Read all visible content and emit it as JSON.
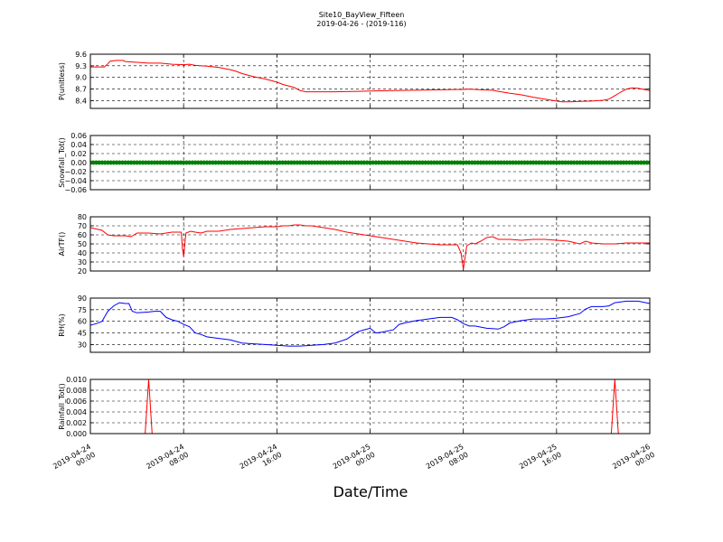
{
  "chart_data": {
    "type": "line",
    "title": "Site10_BayView_Fifteen",
    "subtitle": "2019-04-26 - (2019-116)",
    "xlabel": "Date/Time",
    "x_ticks": [
      {
        "line1": "2019-04-24",
        "line2": "00:00",
        "hours": 0
      },
      {
        "line1": "2019-04-24",
        "line2": "08:00",
        "hours": 8
      },
      {
        "line1": "2019-04-24",
        "line2": "16:00",
        "hours": 16
      },
      {
        "line1": "2019-04-25",
        "line2": "00:00",
        "hours": 24
      },
      {
        "line1": "2019-04-25",
        "line2": "08:00",
        "hours": 32
      },
      {
        "line1": "2019-04-25",
        "line2": "16:00",
        "hours": 40
      },
      {
        "line1": "2019-04-26",
        "line2": "00:00",
        "hours": 48
      }
    ],
    "xlim_hours": [
      0,
      48
    ],
    "grid": true,
    "panels": [
      {
        "id": "pressure",
        "ylabel": "P(unitless)",
        "ylim": [
          8.2,
          9.6
        ],
        "yticks": [
          "9.6",
          "9.3",
          "9.0",
          "8.7",
          "8.4"
        ],
        "ytick_values": [
          9.6,
          9.3,
          9.0,
          8.7,
          8.4
        ],
        "color": "#ff0000",
        "marker": false,
        "points": [
          [
            0,
            9.27
          ],
          [
            1.2,
            9.27
          ],
          [
            1.5,
            9.35
          ],
          [
            1.7,
            9.42
          ],
          [
            2.2,
            9.44
          ],
          [
            2.8,
            9.44
          ],
          [
            3,
            9.41
          ],
          [
            4,
            9.39
          ],
          [
            5,
            9.37
          ],
          [
            6,
            9.37
          ],
          [
            7,
            9.34
          ],
          [
            8,
            9.33
          ],
          [
            8.5,
            9.34
          ],
          [
            9,
            9.31
          ],
          [
            10,
            9.29
          ],
          [
            11,
            9.26
          ],
          [
            12,
            9.2
          ],
          [
            12.5,
            9.16
          ],
          [
            13,
            9.1
          ],
          [
            14,
            9.02
          ],
          [
            15,
            8.96
          ],
          [
            16,
            8.88
          ],
          [
            16.5,
            8.82
          ],
          [
            17,
            8.78
          ],
          [
            17.5,
            8.74
          ],
          [
            18,
            8.66
          ],
          [
            18.5,
            8.63
          ],
          [
            19,
            8.63
          ],
          [
            21,
            8.63
          ],
          [
            23,
            8.64
          ],
          [
            24,
            8.65
          ],
          [
            26,
            8.66
          ],
          [
            28,
            8.67
          ],
          [
            30,
            8.68
          ],
          [
            32,
            8.69
          ],
          [
            32.5,
            8.7
          ],
          [
            33.5,
            8.68
          ],
          [
            34.5,
            8.67
          ],
          [
            35,
            8.64
          ],
          [
            36,
            8.59
          ],
          [
            37,
            8.55
          ],
          [
            38,
            8.49
          ],
          [
            39,
            8.44
          ],
          [
            40,
            8.39
          ],
          [
            40.5,
            8.37
          ],
          [
            41,
            8.37
          ],
          [
            42,
            8.38
          ],
          [
            43,
            8.39
          ],
          [
            44,
            8.41
          ],
          [
            44.5,
            8.44
          ],
          [
            45,
            8.53
          ],
          [
            45.5,
            8.62
          ],
          [
            46,
            8.7
          ],
          [
            46.5,
            8.73
          ],
          [
            47,
            8.72
          ],
          [
            48,
            8.66
          ]
        ]
      },
      {
        "id": "snowfall",
        "ylabel": "Snowfall_Tot()",
        "ylim": [
          -0.06,
          0.06
        ],
        "yticks": [
          "0.06",
          "0.04",
          "0.02",
          "0.00",
          "−0.02",
          "−0.04",
          "−0.06"
        ],
        "ytick_values": [
          0.06,
          0.04,
          0.02,
          0.0,
          -0.02,
          -0.04,
          -0.06
        ],
        "color": "#008000",
        "marker": true,
        "points": [
          [
            0,
            0
          ],
          [
            48,
            0
          ]
        ]
      },
      {
        "id": "airtemp",
        "ylabel": "AirTF()",
        "ylim": [
          20,
          80
        ],
        "yticks": [
          "80",
          "70",
          "60",
          "50",
          "40",
          "30",
          "20"
        ],
        "ytick_values": [
          80,
          70,
          60,
          50,
          40,
          30,
          20
        ],
        "color": "#ff0000",
        "marker": false,
        "points": [
          [
            0,
            68
          ],
          [
            1,
            65
          ],
          [
            1.5,
            60
          ],
          [
            2,
            59
          ],
          [
            3,
            59
          ],
          [
            3.5,
            58
          ],
          [
            4,
            62
          ],
          [
            5,
            62
          ],
          [
            6,
            61
          ],
          [
            7,
            63
          ],
          [
            7.8,
            63
          ],
          [
            7.9,
            44
          ],
          [
            8,
            36
          ],
          [
            8.2,
            62
          ],
          [
            8.6,
            64
          ],
          [
            9,
            63
          ],
          [
            9.5,
            62
          ],
          [
            10,
            64
          ],
          [
            11,
            64
          ],
          [
            12,
            66
          ],
          [
            13,
            67
          ],
          [
            14,
            68
          ],
          [
            15,
            69
          ],
          [
            16,
            69
          ],
          [
            16.5,
            70
          ],
          [
            17,
            70
          ],
          [
            17.5,
            71
          ],
          [
            18,
            71
          ],
          [
            18.5,
            70
          ],
          [
            19,
            70
          ],
          [
            20,
            68
          ],
          [
            21,
            66
          ],
          [
            22,
            63
          ],
          [
            23,
            61
          ],
          [
            24,
            59
          ],
          [
            25,
            57
          ],
          [
            26,
            55
          ],
          [
            27,
            53
          ],
          [
            28,
            51
          ],
          [
            29,
            50
          ],
          [
            30,
            49
          ],
          [
            31,
            49
          ],
          [
            31.5,
            49
          ],
          [
            31.8,
            40
          ],
          [
            32,
            22
          ],
          [
            32.3,
            48
          ],
          [
            32.7,
            51
          ],
          [
            33,
            50
          ],
          [
            33.5,
            53
          ],
          [
            34,
            57
          ],
          [
            34.5,
            58
          ],
          [
            35,
            55
          ],
          [
            36,
            55
          ],
          [
            37,
            54
          ],
          [
            38,
            55
          ],
          [
            39,
            55
          ],
          [
            40,
            54
          ],
          [
            41,
            53
          ],
          [
            42,
            50
          ],
          [
            42.5,
            53
          ],
          [
            43,
            51
          ],
          [
            44,
            50
          ],
          [
            45,
            50
          ],
          [
            46,
            51
          ],
          [
            47,
            51
          ],
          [
            48,
            51
          ]
        ]
      },
      {
        "id": "rh",
        "ylabel": "RH(%)",
        "ylim": [
          20,
          90
        ],
        "yticks": [
          "90",
          "75",
          "60",
          "45",
          "30"
        ],
        "ytick_values": [
          90,
          75,
          60,
          45,
          30
        ],
        "color": "#0000ff",
        "marker": false,
        "points": [
          [
            0,
            55
          ],
          [
            0.5,
            57
          ],
          [
            1,
            60
          ],
          [
            1.5,
            73
          ],
          [
            2,
            80
          ],
          [
            2.5,
            84
          ],
          [
            3,
            83
          ],
          [
            3.3,
            83
          ],
          [
            3.6,
            73
          ],
          [
            4,
            71
          ],
          [
            5,
            72
          ],
          [
            5.5,
            73
          ],
          [
            6,
            73
          ],
          [
            6.5,
            65
          ],
          [
            7,
            62
          ],
          [
            7.5,
            60
          ],
          [
            8,
            56
          ],
          [
            8.5,
            53
          ],
          [
            9,
            45
          ],
          [
            9.5,
            43
          ],
          [
            10,
            40
          ],
          [
            11,
            38
          ],
          [
            12,
            36
          ],
          [
            13,
            32
          ],
          [
            14,
            31
          ],
          [
            15,
            30
          ],
          [
            16,
            29
          ],
          [
            17,
            28
          ],
          [
            18,
            28
          ],
          [
            19,
            29
          ],
          [
            20,
            30
          ],
          [
            21,
            32
          ],
          [
            22,
            37
          ],
          [
            22.5,
            42
          ],
          [
            23,
            47
          ],
          [
            23.5,
            49
          ],
          [
            24,
            51
          ],
          [
            24.5,
            45
          ],
          [
            25,
            46
          ],
          [
            26,
            49
          ],
          [
            26.5,
            56
          ],
          [
            27,
            58
          ],
          [
            28,
            61
          ],
          [
            29,
            63
          ],
          [
            30,
            65
          ],
          [
            31,
            65
          ],
          [
            31.5,
            62
          ],
          [
            32,
            57
          ],
          [
            32.5,
            54
          ],
          [
            33,
            54
          ],
          [
            34,
            51
          ],
          [
            35,
            50
          ],
          [
            35.5,
            53
          ],
          [
            36,
            58
          ],
          [
            37,
            61
          ],
          [
            38,
            63
          ],
          [
            39,
            63
          ],
          [
            40,
            64
          ],
          [
            41,
            66
          ],
          [
            42,
            70
          ],
          [
            42.5,
            76
          ],
          [
            43,
            79
          ],
          [
            44,
            79
          ],
          [
            44.5,
            80
          ],
          [
            45,
            84
          ],
          [
            46,
            86
          ],
          [
            47,
            86
          ],
          [
            48,
            83
          ]
        ]
      },
      {
        "id": "rainfall",
        "ylabel": "Rainfall_Tot()",
        "ylim": [
          0,
          0.01
        ],
        "yticks": [
          "0.010",
          "0.008",
          "0.006",
          "0.004",
          "0.002",
          "0.000"
        ],
        "ytick_values": [
          0.01,
          0.008,
          0.006,
          0.004,
          0.002,
          0.0
        ],
        "color": "#ff0000",
        "marker": false,
        "points": [
          [
            0,
            0
          ],
          [
            4.7,
            0
          ],
          [
            5,
            0.01
          ],
          [
            5.3,
            0
          ],
          [
            44.7,
            0
          ],
          [
            45,
            0.01
          ],
          [
            45.3,
            0
          ],
          [
            48,
            0
          ]
        ]
      }
    ]
  }
}
